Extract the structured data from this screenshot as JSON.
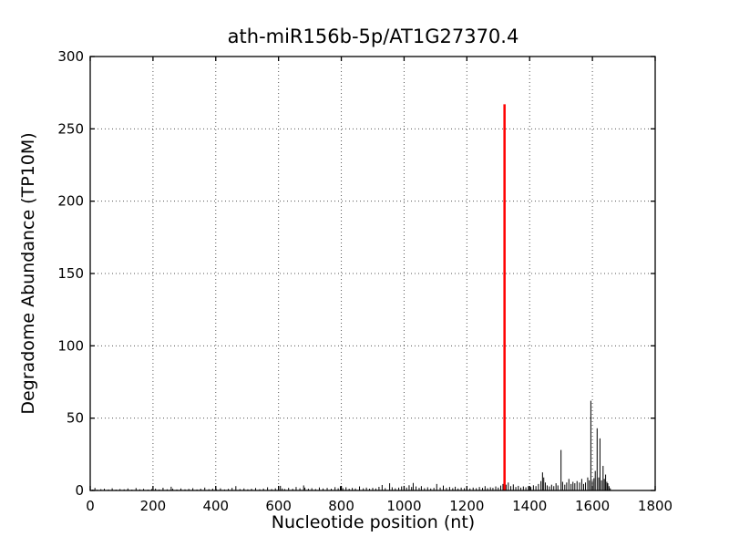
{
  "figure": {
    "background_color": "#ffffff"
  },
  "chart_data": {
    "type": "bar",
    "title": "ath-miR156b-5p/AT1G27370.4",
    "xlabel": "Nucleotide position (nt)",
    "ylabel": "Degradome Abundance (TP10M)",
    "xlim": [
      0,
      1800
    ],
    "ylim": [
      0,
      300
    ],
    "xticks": [
      0,
      200,
      400,
      600,
      800,
      1000,
      1200,
      1400,
      1600,
      1800
    ],
    "yticks": [
      0,
      50,
      100,
      150,
      200,
      250,
      300
    ],
    "grid": true,
    "grid_style": "dotted",
    "legend": "none",
    "colors": {
      "axis": "#000000",
      "grid": "#555555",
      "black_spikes": "#000000",
      "red_peak": "#ff0000"
    },
    "series": [
      {
        "name": "degradome-background-spikes",
        "color": "#000000",
        "points": [
          [
            8,
            0.6
          ],
          [
            15,
            1.8
          ],
          [
            22,
            0.5
          ],
          [
            34,
            0.9
          ],
          [
            45,
            1.2
          ],
          [
            58,
            0.7
          ],
          [
            70,
            1.5
          ],
          [
            82,
            0.6
          ],
          [
            95,
            1.0
          ],
          [
            108,
            0.8
          ],
          [
            120,
            1.4
          ],
          [
            133,
            0.6
          ],
          [
            146,
            1.7
          ],
          [
            158,
            0.8
          ],
          [
            170,
            1.1
          ],
          [
            184,
            0.6
          ],
          [
            196,
            1.0
          ],
          [
            208,
            1.3
          ],
          [
            220,
            0.7
          ],
          [
            232,
            1.9
          ],
          [
            245,
            0.8
          ],
          [
            258,
            2.6
          ],
          [
            263,
            1.2
          ],
          [
            276,
            0.7
          ],
          [
            289,
            1.4
          ],
          [
            302,
            0.8
          ],
          [
            314,
            1.1
          ],
          [
            327,
            1.6
          ],
          [
            340,
            0.7
          ],
          [
            352,
            1.2
          ],
          [
            365,
            2.0
          ],
          [
            378,
            0.9
          ],
          [
            390,
            1.3
          ],
          [
            402,
            0.8
          ],
          [
            415,
            1.5
          ],
          [
            428,
            0.7
          ],
          [
            440,
            1.1
          ],
          [
            452,
            1.8
          ],
          [
            464,
            3.0
          ],
          [
            477,
            1.0
          ],
          [
            490,
            1.4
          ],
          [
            502,
            0.8
          ],
          [
            514,
            1.2
          ],
          [
            527,
            1.7
          ],
          [
            540,
            0.9
          ],
          [
            552,
            1.3
          ],
          [
            565,
            2.2
          ],
          [
            578,
            1.0
          ],
          [
            590,
            1.5
          ],
          [
            606,
            3.2
          ],
          [
            612,
            1.4
          ],
          [
            620,
            1.0
          ],
          [
            632,
            1.8
          ],
          [
            645,
            1.2
          ],
          [
            656,
            2.4
          ],
          [
            668,
            1.5
          ],
          [
            680,
            3.5
          ],
          [
            684,
            2.0
          ],
          [
            695,
            1.2
          ],
          [
            706,
            1.6
          ],
          [
            718,
            1.0
          ],
          [
            730,
            2.1
          ],
          [
            742,
            1.4
          ],
          [
            755,
            1.8
          ],
          [
            768,
            1.2
          ],
          [
            780,
            2.3
          ],
          [
            790,
            1.5
          ],
          [
            797,
            3.0
          ],
          [
            805,
            1.6
          ],
          [
            815,
            2.2
          ],
          [
            825,
            1.2
          ],
          [
            835,
            1.8
          ],
          [
            845,
            1.4
          ],
          [
            858,
            2.8
          ],
          [
            870,
            1.5
          ],
          [
            880,
            2.0
          ],
          [
            890,
            1.2
          ],
          [
            900,
            1.8
          ],
          [
            910,
            1.4
          ],
          [
            920,
            2.5
          ],
          [
            930,
            3.8
          ],
          [
            940,
            1.6
          ],
          [
            954,
            5.0
          ],
          [
            962,
            2.2
          ],
          [
            972,
            1.5
          ],
          [
            983,
            2.0
          ],
          [
            992,
            2.8
          ],
          [
            1000,
            3.2
          ],
          [
            1008,
            2.0
          ],
          [
            1016,
            3.6
          ],
          [
            1024,
            2.4
          ],
          [
            1029,
            5.2
          ],
          [
            1038,
            2.8
          ],
          [
            1048,
            1.8
          ],
          [
            1055,
            3.0
          ],
          [
            1065,
            1.6
          ],
          [
            1075,
            2.2
          ],
          [
            1085,
            1.4
          ],
          [
            1095,
            1.8
          ],
          [
            1104,
            4.5
          ],
          [
            1115,
            2.0
          ],
          [
            1125,
            3.4
          ],
          [
            1135,
            1.8
          ],
          [
            1145,
            2.4
          ],
          [
            1155,
            1.6
          ],
          [
            1163,
            2.6
          ],
          [
            1172,
            1.4
          ],
          [
            1182,
            2.0
          ],
          [
            1192,
            1.6
          ],
          [
            1200,
            2.2
          ],
          [
            1210,
            1.4
          ],
          [
            1220,
            2.0
          ],
          [
            1230,
            1.6
          ],
          [
            1240,
            2.4
          ],
          [
            1250,
            1.8
          ],
          [
            1258,
            3.0
          ],
          [
            1266,
            1.6
          ],
          [
            1275,
            2.2
          ],
          [
            1283,
            1.8
          ],
          [
            1292,
            2.8
          ],
          [
            1300,
            2.0
          ],
          [
            1308,
            3.4
          ],
          [
            1315,
            4.5
          ],
          [
            1325,
            4.0
          ],
          [
            1332,
            5.5
          ],
          [
            1340,
            3.0
          ],
          [
            1348,
            4.2
          ],
          [
            1356,
            2.4
          ],
          [
            1364,
            3.2
          ],
          [
            1372,
            2.0
          ],
          [
            1380,
            2.8
          ],
          [
            1388,
            2.2
          ],
          [
            1396,
            3.0
          ],
          [
            1404,
            2.4
          ],
          [
            1412,
            3.6
          ],
          [
            1420,
            3.0
          ],
          [
            1428,
            4.5
          ],
          [
            1436,
            6.5
          ],
          [
            1441,
            12.5
          ],
          [
            1445,
            9.0
          ],
          [
            1450,
            5.5
          ],
          [
            1456,
            3.5
          ],
          [
            1463,
            2.8
          ],
          [
            1470,
            4.0
          ],
          [
            1477,
            3.0
          ],
          [
            1484,
            5.0
          ],
          [
            1490,
            3.5
          ],
          [
            1500,
            28.0
          ],
          [
            1505,
            6.0
          ],
          [
            1512,
            4.0
          ],
          [
            1518,
            5.5
          ],
          [
            1525,
            8.0
          ],
          [
            1532,
            4.5
          ],
          [
            1538,
            6.0
          ],
          [
            1544,
            5.0
          ],
          [
            1551,
            6.5
          ],
          [
            1559,
            5.5
          ],
          [
            1566,
            8.0
          ],
          [
            1572,
            4.5
          ],
          [
            1578,
            5.5
          ],
          [
            1585,
            9.0
          ],
          [
            1590,
            7.0
          ],
          [
            1595,
            62.0
          ],
          [
            1600,
            6.5
          ],
          [
            1605,
            8.5
          ],
          [
            1609,
            13.5
          ],
          [
            1615,
            43.0
          ],
          [
            1620,
            9.0
          ],
          [
            1624,
            36.0
          ],
          [
            1629,
            7.0
          ],
          [
            1634,
            17.0
          ],
          [
            1638,
            8.0
          ],
          [
            1642,
            11.0
          ],
          [
            1646,
            6.0
          ],
          [
            1649,
            5.0
          ],
          [
            1653,
            3.0
          ],
          [
            1657,
            1.5
          ]
        ]
      },
      {
        "name": "highlighted-cleavage-peak",
        "color": "#ff0000",
        "points": [
          [
            1320,
            267
          ]
        ]
      }
    ]
  }
}
